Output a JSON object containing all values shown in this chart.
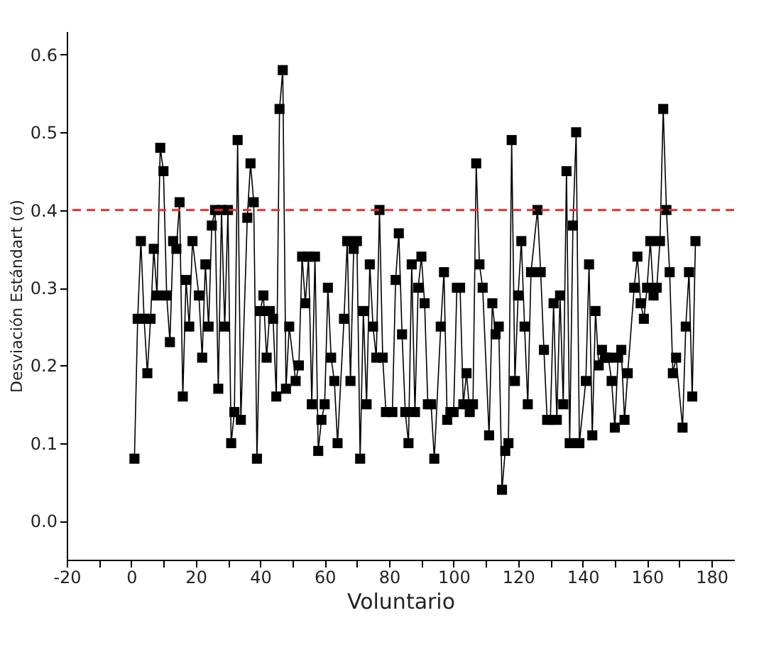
{
  "chart_data": {
    "type": "line",
    "xlabel": "Voluntario",
    "ylabel": "Desviación Estándart (σ)",
    "x": [
      1,
      2,
      3,
      4,
      5,
      6,
      7,
      8,
      9,
      10,
      11,
      12,
      13,
      14,
      15,
      16,
      17,
      18,
      19,
      21,
      22,
      23,
      24,
      25,
      26,
      27,
      28,
      29,
      30,
      31,
      32,
      33,
      34,
      36,
      37,
      38,
      39,
      40,
      41,
      42,
      43,
      44,
      45,
      46,
      47,
      48,
      49,
      51,
      52,
      53,
      54,
      55,
      56,
      57,
      58,
      59,
      60,
      61,
      62,
      63,
      64,
      66,
      67,
      68,
      69,
      70,
      71,
      72,
      73,
      74,
      75,
      76,
      77,
      78,
      79,
      81,
      82,
      83,
      84,
      85,
      86,
      87,
      88,
      89,
      90,
      91,
      92,
      93,
      94,
      96,
      97,
      98,
      99,
      100,
      101,
      102,
      103,
      104,
      105,
      106,
      107,
      108,
      109,
      111,
      112,
      113,
      114,
      115,
      116,
      117,
      118,
      119,
      120,
      121,
      122,
      123,
      124,
      126,
      127,
      128,
      129,
      130,
      131,
      132,
      133,
      134,
      135,
      136,
      137,
      138,
      139,
      141,
      142,
      143,
      144,
      145,
      146,
      147,
      148,
      149,
      150,
      151,
      152,
      153,
      154,
      156,
      157,
      158,
      159,
      160,
      161,
      162,
      163,
      164,
      165,
      166,
      167,
      168,
      169,
      171,
      172,
      173,
      174,
      175
    ],
    "series": [
      {
        "color": "#000000",
        "values": [
          0.08,
          0.26,
          0.36,
          0.26,
          0.19,
          0.26,
          0.35,
          0.29,
          0.48,
          0.45,
          0.29,
          0.23,
          0.36,
          0.35,
          0.41,
          0.16,
          0.31,
          0.25,
          0.36,
          0.29,
          0.21,
          0.33,
          0.25,
          0.38,
          0.4,
          0.17,
          0.4,
          0.25,
          0.4,
          0.1,
          0.14,
          0.49,
          0.13,
          0.39,
          0.46,
          0.41,
          0.08,
          0.27,
          0.29,
          0.21,
          0.27,
          0.26,
          0.16,
          0.53,
          0.58,
          0.17,
          0.25,
          0.18,
          0.2,
          0.34,
          0.28,
          0.34,
          0.15,
          0.34,
          0.09,
          0.13,
          0.15,
          0.3,
          0.21,
          0.18,
          0.1,
          0.26,
          0.36,
          0.18,
          0.35,
          0.36,
          0.08,
          0.27,
          0.15,
          0.33,
          0.25,
          0.21,
          0.4,
          0.21,
          0.14,
          0.14,
          0.31,
          0.37,
          0.24,
          0.14,
          0.1,
          0.33,
          0.14,
          0.3,
          0.34,
          0.28,
          0.15,
          0.15,
          0.08,
          0.25,
          0.32,
          0.13,
          0.14,
          0.14,
          0.3,
          0.3,
          0.15,
          0.19,
          0.14,
          0.15,
          0.46,
          0.33,
          0.3,
          0.11,
          0.28,
          0.24,
          0.25,
          0.04,
          0.09,
          0.1,
          0.49,
          0.18,
          0.29,
          0.36,
          0.25,
          0.15,
          0.32,
          0.4,
          0.32,
          0.22,
          0.13,
          0.13,
          0.28,
          0.13,
          0.29,
          0.15,
          0.45,
          0.1,
          0.38,
          0.5,
          0.1,
          0.18,
          0.33,
          0.11,
          0.27,
          0.2,
          0.22,
          0.21,
          0.21,
          0.18,
          0.12,
          0.21,
          0.22,
          0.13,
          0.19,
          0.3,
          0.34,
          0.28,
          0.26,
          0.3,
          0.36,
          0.29,
          0.3,
          0.36,
          0.53,
          0.4,
          0.32,
          0.19,
          0.21,
          0.12,
          0.25,
          0.32,
          0.16,
          0.36
        ]
      }
    ],
    "marker": "square",
    "line_style": "solid",
    "xlim": [
      -20,
      187
    ],
    "ylim": [
      -0.05,
      0.63
    ],
    "xticks": [
      -20,
      {
        "value": -10,
        "label": null
      },
      0,
      {
        "value": 10,
        "label": null
      },
      20,
      {
        "value": 30,
        "label": null
      },
      40,
      {
        "value": 50,
        "label": null
      },
      60,
      {
        "value": 70,
        "label": null
      },
      80,
      {
        "value": 90,
        "label": null
      },
      100,
      {
        "value": 110,
        "label": null
      },
      120,
      {
        "value": 130,
        "label": null
      },
      140,
      {
        "value": 150,
        "label": null
      },
      160,
      {
        "value": 170,
        "label": null
      },
      180
    ],
    "yticks": [
      {
        "value": 0,
        "label": "0.0"
      },
      {
        "value": 0.1,
        "label": "0.1"
      },
      {
        "value": 0.2,
        "label": "0.2"
      },
      {
        "value": 0.3,
        "label": "0.3"
      },
      {
        "value": 0.4,
        "label": "0.4"
      },
      {
        "value": 0.5,
        "label": "0.5"
      },
      {
        "value": 0.6,
        "label": "0.6"
      }
    ],
    "ref_lines": [
      {
        "axis": "y",
        "value": 0.4,
        "color": "#e03030",
        "line_style": "dashed"
      }
    ],
    "grid": false
  }
}
